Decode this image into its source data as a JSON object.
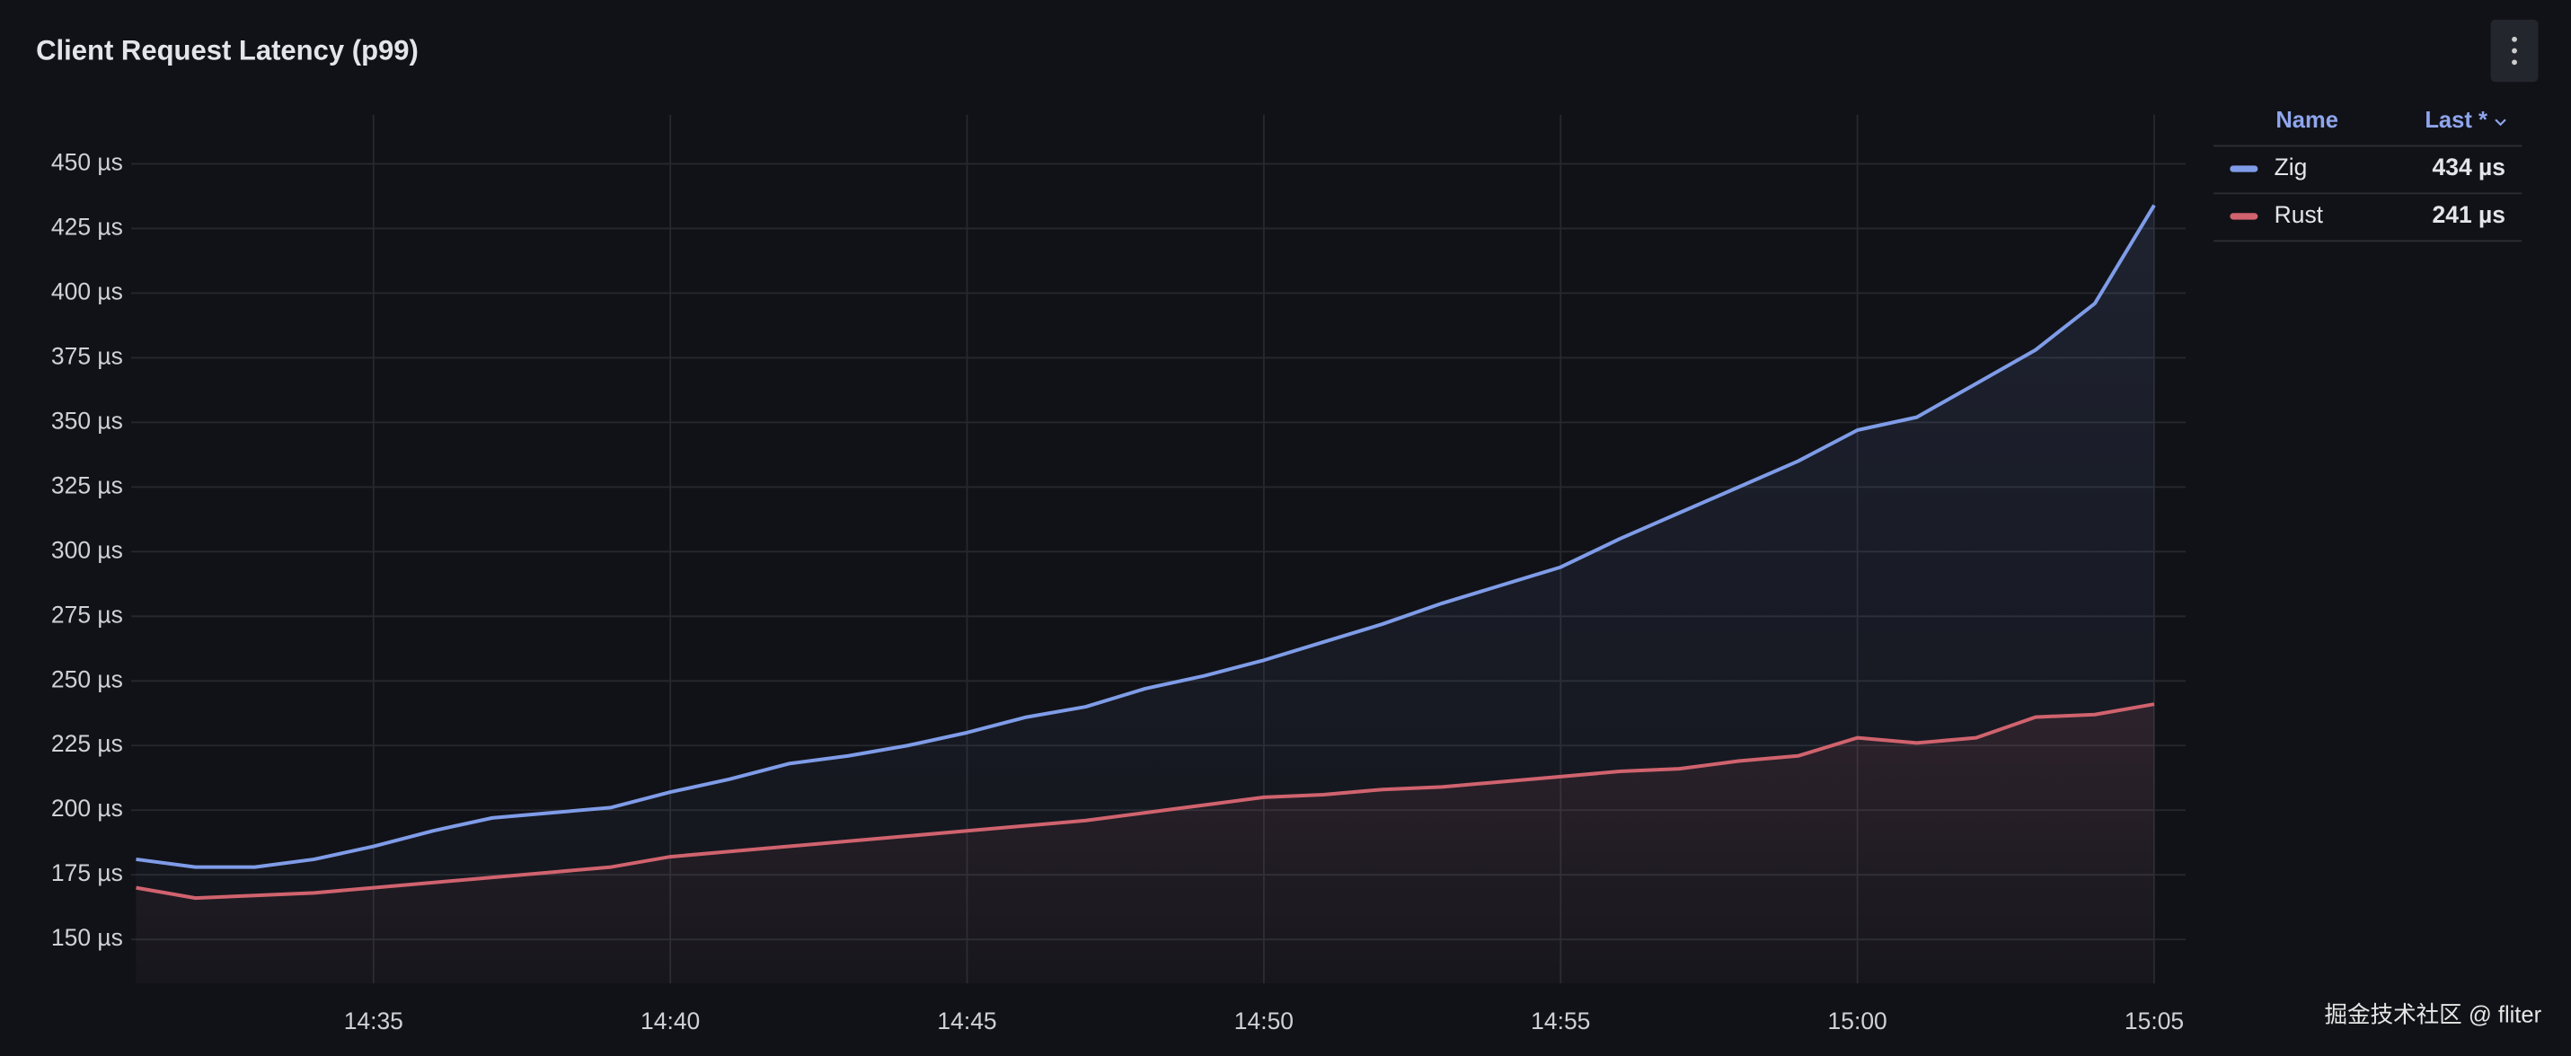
{
  "chart_data": {
    "type": "line",
    "title": "Client Request Latency (p99)",
    "x": [
      null,
      null,
      null,
      null,
      "14:35",
      null,
      null,
      null,
      null,
      "14:40",
      null,
      null,
      null,
      null,
      "14:45",
      null,
      null,
      null,
      null,
      "14:50",
      null,
      null,
      null,
      null,
      "14:55",
      null,
      null,
      null,
      null,
      "15:00",
      null,
      null,
      null,
      null,
      "15:05"
    ],
    "series": [
      {
        "name": "Zig",
        "color": "#7f9ce8",
        "last_label": "434 µs",
        "values": [
          181,
          178,
          178,
          181,
          186,
          192,
          197,
          199,
          201,
          207,
          212,
          218,
          221,
          225,
          230,
          236,
          240,
          247,
          252,
          258,
          265,
          272,
          280,
          287,
          294,
          305,
          315,
          325,
          335,
          347,
          352,
          365,
          378,
          396,
          434
        ]
      },
      {
        "name": "Rust",
        "color": "#d0636e",
        "last_label": "241 µs",
        "values": [
          170,
          166,
          167,
          168,
          170,
          172,
          174,
          176,
          178,
          182,
          184,
          186,
          188,
          190,
          192,
          194,
          196,
          199,
          202,
          205,
          206,
          208,
          209,
          211,
          213,
          215,
          216,
          219,
          221,
          228,
          226,
          228,
          236,
          237,
          241
        ]
      }
    ],
    "ylim": [
      133,
      469
    ],
    "yticks": [
      {
        "value": 150,
        "label": "150 µs"
      },
      {
        "value": 175,
        "label": "175 µs"
      },
      {
        "value": 200,
        "label": "200 µs"
      },
      {
        "value": 225,
        "label": "225 µs"
      },
      {
        "value": 250,
        "label": "250 µs"
      },
      {
        "value": 275,
        "label": "275 µs"
      },
      {
        "value": 300,
        "label": "300 µs"
      },
      {
        "value": 325,
        "label": "325 µs"
      },
      {
        "value": 350,
        "label": "350 µs"
      },
      {
        "value": 375,
        "label": "375 µs"
      },
      {
        "value": 400,
        "label": "400 µs"
      },
      {
        "value": 425,
        "label": "425 µs"
      },
      {
        "value": 450,
        "label": "450 µs"
      }
    ],
    "grid": true,
    "legend": {
      "position": "right",
      "columns": [
        "Name",
        "Last *"
      ]
    },
    "watermark": "掘金技术社区 @ fliter"
  }
}
